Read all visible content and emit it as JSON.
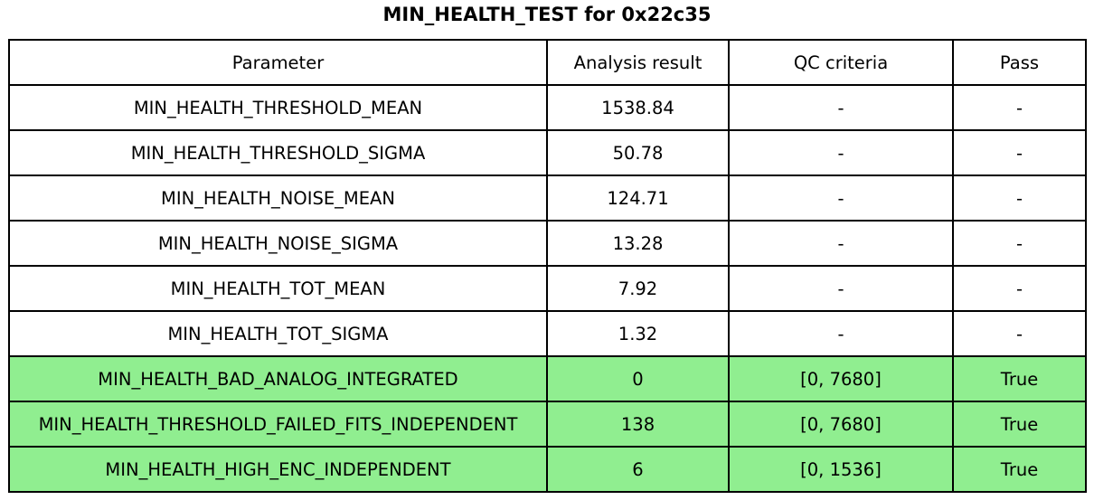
{
  "title": "MIN_HEALTH_TEST for 0x22c35",
  "colors": {
    "pass_green": "#90EE90",
    "border": "#000000",
    "text": "#000000",
    "background": "#FFFFFF"
  },
  "chart_data": {
    "type": "table",
    "title": "MIN_HEALTH_TEST for 0x22c35",
    "columns": [
      "Parameter",
      "Analysis result",
      "QC criteria",
      "Pass"
    ],
    "rows": [
      {
        "parameter": "MIN_HEALTH_THRESHOLD_MEAN",
        "analysis_result": "1538.84",
        "qc_criteria": "-",
        "pass": "-",
        "highlighted": false
      },
      {
        "parameter": "MIN_HEALTH_THRESHOLD_SIGMA",
        "analysis_result": "50.78",
        "qc_criteria": "-",
        "pass": "-",
        "highlighted": false
      },
      {
        "parameter": "MIN_HEALTH_NOISE_MEAN",
        "analysis_result": "124.71",
        "qc_criteria": "-",
        "pass": "-",
        "highlighted": false
      },
      {
        "parameter": "MIN_HEALTH_NOISE_SIGMA",
        "analysis_result": "13.28",
        "qc_criteria": "-",
        "pass": "-",
        "highlighted": false
      },
      {
        "parameter": "MIN_HEALTH_TOT_MEAN",
        "analysis_result": "7.92",
        "qc_criteria": "-",
        "pass": "-",
        "highlighted": false
      },
      {
        "parameter": "MIN_HEALTH_TOT_SIGMA",
        "analysis_result": "1.32",
        "qc_criteria": "-",
        "pass": "-",
        "highlighted": false
      },
      {
        "parameter": "MIN_HEALTH_BAD_ANALOG_INTEGRATED",
        "analysis_result": "0",
        "qc_criteria": "[0, 7680]",
        "pass": "True",
        "highlighted": true
      },
      {
        "parameter": "MIN_HEALTH_THRESHOLD_FAILED_FITS_INDEPENDENT",
        "analysis_result": "138",
        "qc_criteria": "[0, 7680]",
        "pass": "True",
        "highlighted": true
      },
      {
        "parameter": "MIN_HEALTH_HIGH_ENC_INDEPENDENT",
        "analysis_result": "6",
        "qc_criteria": "[0, 1536]",
        "pass": "True",
        "highlighted": true
      }
    ],
    "highlight_color": "#90EE90",
    "grid": true,
    "legend_position": "none"
  }
}
